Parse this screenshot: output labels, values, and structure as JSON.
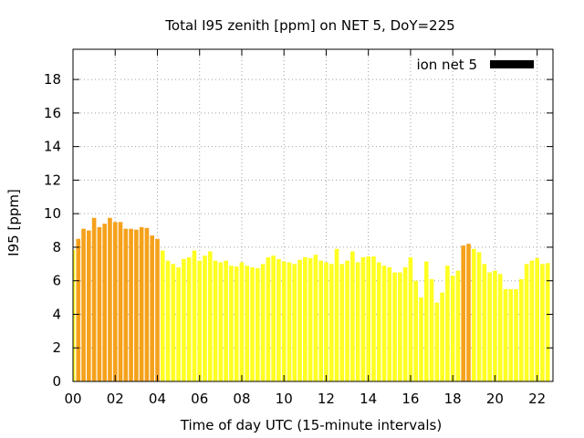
{
  "chart_data": {
    "type": "bar",
    "title": "Total I95 zenith [ppm] on NET 5, DoY=225",
    "xlabel": "Time of day UTC (15-minute intervals)",
    "ylabel": "I95 [ppm]",
    "xlim": [
      0,
      22.75
    ],
    "ylim": [
      0,
      19.8
    ],
    "x_ticks": [
      "00",
      "02",
      "04",
      "06",
      "08",
      "10",
      "12",
      "14",
      "16",
      "18",
      "20",
      "22"
    ],
    "y_ticks": [
      "0",
      "2",
      "4",
      "6",
      "8",
      "10",
      "12",
      "14",
      "16",
      "18"
    ],
    "grid": true,
    "legend": {
      "label": "ion net 5",
      "position": "top-right",
      "color": "#000000"
    },
    "bar_interval_hours": 0.25,
    "colors": {
      "high": "#f5a11b",
      "low": "#ffff22",
      "threshold": 8.0
    },
    "values": [
      7.85,
      8.5,
      9.1,
      9.0,
      9.75,
      9.2,
      9.4,
      9.75,
      9.5,
      9.5,
      9.1,
      9.1,
      9.05,
      9.2,
      9.15,
      8.7,
      8.5,
      7.8,
      7.2,
      7.0,
      6.8,
      7.3,
      7.4,
      7.8,
      7.2,
      7.5,
      7.75,
      7.2,
      7.1,
      7.2,
      6.9,
      6.85,
      7.1,
      6.9,
      6.8,
      6.75,
      7.0,
      7.4,
      7.5,
      7.3,
      7.15,
      7.1,
      7.0,
      7.25,
      7.4,
      7.35,
      7.55,
      7.2,
      7.1,
      7.0,
      7.9,
      7.0,
      7.2,
      7.75,
      7.1,
      7.4,
      7.45,
      7.45,
      7.1,
      6.9,
      6.8,
      6.5,
      6.5,
      6.8,
      7.4,
      6.0,
      5.0,
      7.15,
      6.1,
      4.7,
      5.3,
      6.9,
      6.3,
      6.6,
      8.1,
      8.2,
      7.9,
      7.7,
      7.0,
      6.5,
      6.6,
      6.4,
      5.5,
      5.5,
      5.5,
      6.1,
      7.0,
      7.2,
      7.35,
      7.0,
      7.05
    ]
  }
}
